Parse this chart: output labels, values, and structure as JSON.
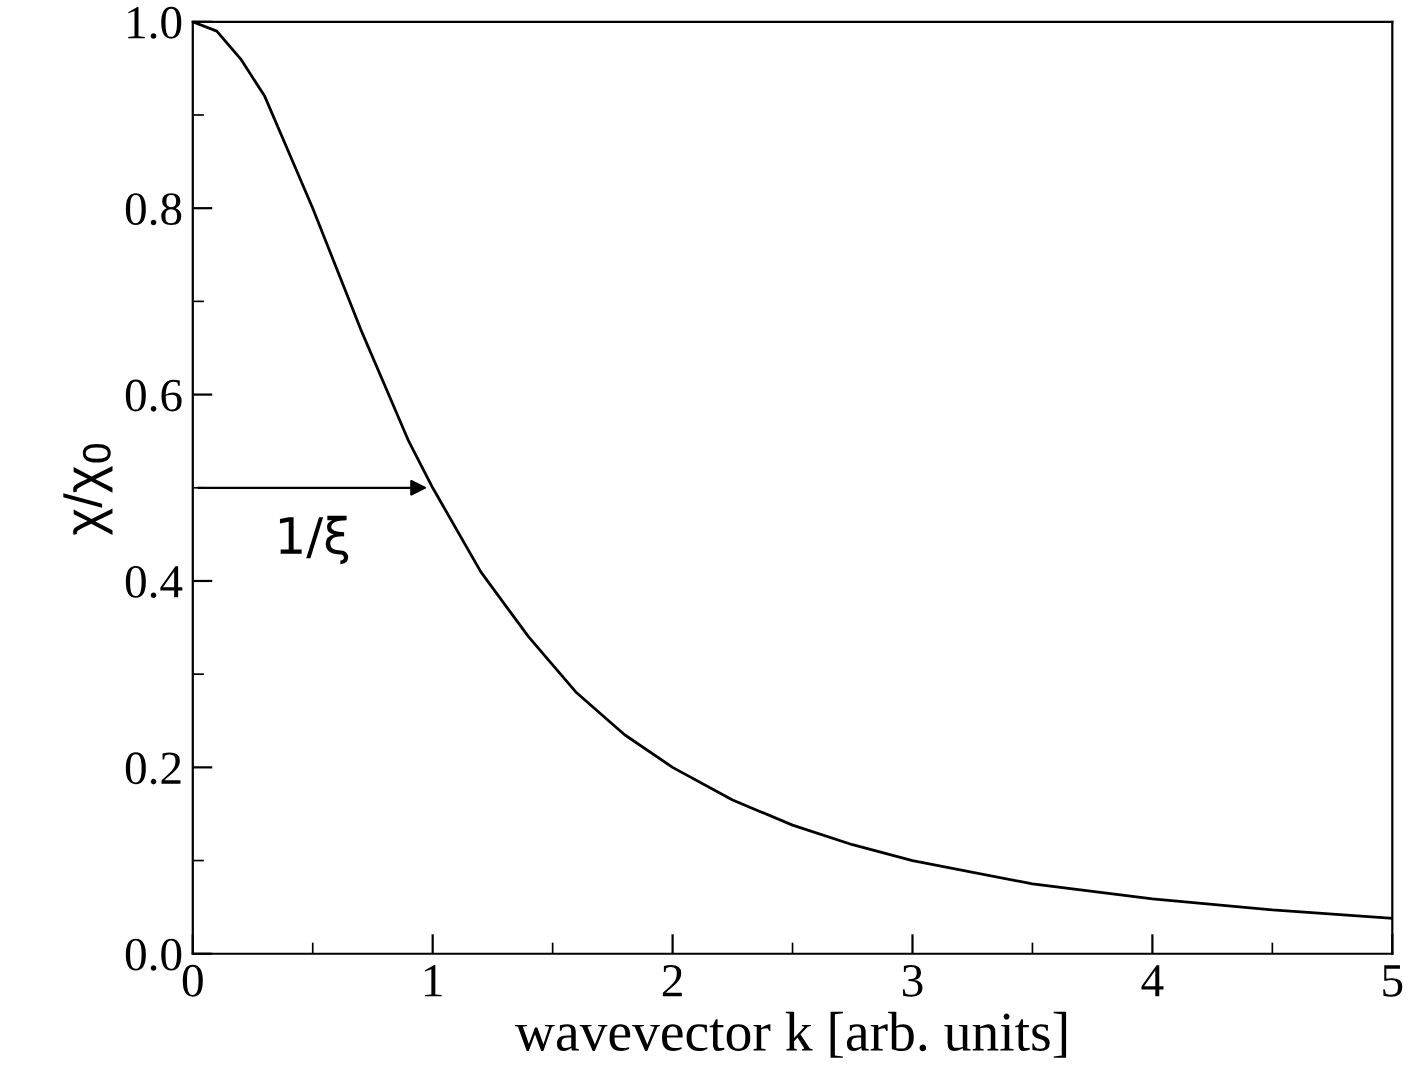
{
  "chart_data": {
    "type": "line",
    "xlabel": "wavevector k [arb. units]",
    "ylabel": "χ/χ$_{0}$",
    "x": [
      0,
      0.1,
      0.2,
      0.3,
      0.4,
      0.5,
      0.6,
      0.7,
      0.8,
      0.9,
      1,
      1.2,
      1.4,
      1.6,
      1.8,
      2,
      2.25,
      2.5,
      2.75,
      3,
      3.5,
      4,
      4.5,
      5
    ],
    "series": [
      {
        "color": "#000000",
        "values": [
          1,
          0.99,
          0.96,
          0.92,
          0.86,
          0.8,
          0.735,
          0.67,
          0.61,
          0.55,
          0.5,
          0.41,
          0.34,
          0.28,
          0.235,
          0.2,
          0.165,
          0.138,
          0.117,
          0.1,
          0.075,
          0.059,
          0.047,
          0.038
        ]
      }
    ],
    "xlim": [
      0,
      5
    ],
    "xticks": [
      0,
      1,
      2,
      3,
      4,
      5
    ],
    "ylim": [
      0,
      1
    ],
    "yticks": [
      {
        "value": 0,
        "label": "0.0"
      },
      {
        "value": 0.2,
        "label": "0.2"
      },
      {
        "value": 0.4,
        "label": "0.4"
      },
      {
        "value": 0.6,
        "label": "0.6"
      },
      {
        "value": 0.8,
        "label": "0.8"
      },
      {
        "value": 1,
        "label": "1.0"
      }
    ],
    "annotations": [
      {
        "text": "1/ξ",
        "x": 1,
        "y": 0.5
      }
    ],
    "grid": false,
    "legend": false,
    "marker": "none",
    "line_style": "solid"
  }
}
